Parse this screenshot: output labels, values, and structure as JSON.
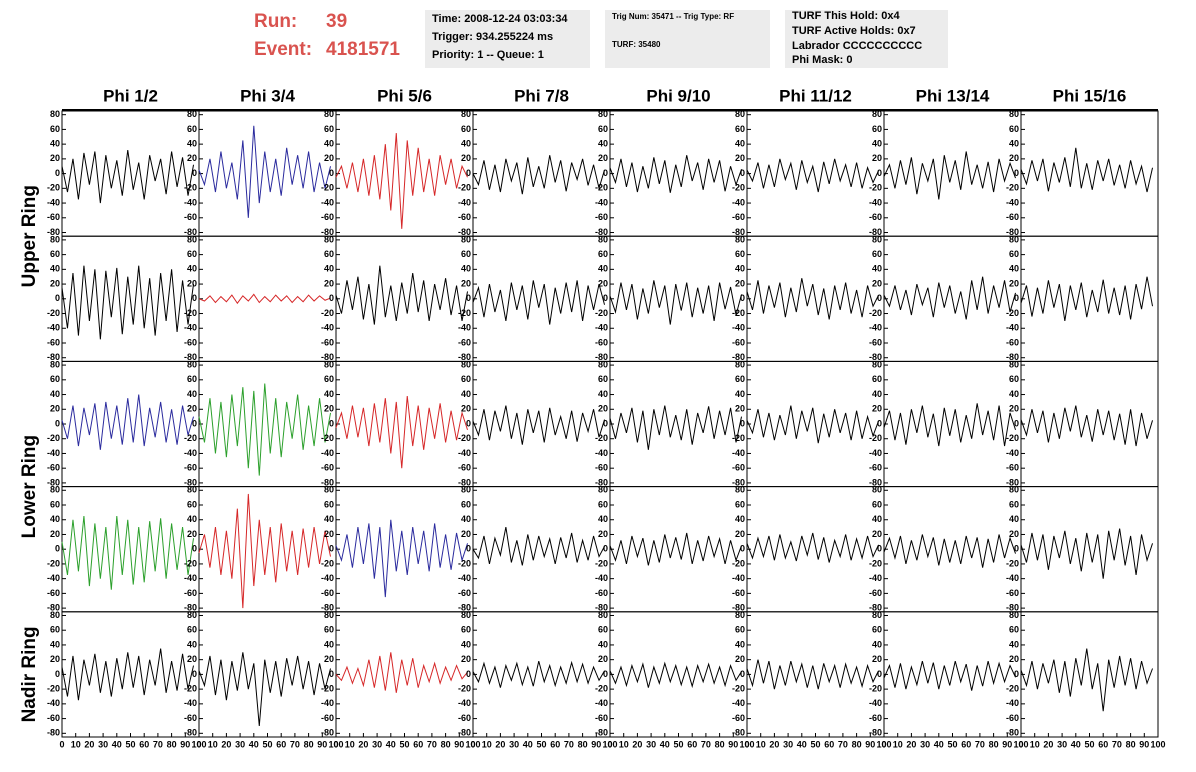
{
  "header": {
    "run_label": "Run:",
    "run": "39",
    "event_label": "Event:",
    "event": "4181571",
    "time": "Time: 2008-12-24 03:03:34",
    "trigger": "Trigger: 934.255224 ms",
    "priority": "Priority: 1 -- Queue: 1",
    "trig_num": "Trig Num: 35471 -- Trig Type: RF",
    "turf": "TURF: 35480",
    "turf_hold": "TURF This Hold: 0x4",
    "turf_active": "TURF Active Holds: 0x7",
    "labrador": "Labrador CCCCCCCCCC",
    "phi_mask": "Phi Mask: 0"
  },
  "column_labels": [
    "Phi 1/2",
    "Phi 3/4",
    "Phi 5/6",
    "Phi 7/8",
    "Phi 9/10",
    "Phi 11/12",
    "Phi 13/14",
    "Phi 15/16"
  ],
  "row_labels": [
    "Upper Ring",
    "Lower Ring",
    "Nadir Ring"
  ],
  "axes": {
    "x": [
      0,
      4,
      8,
      12,
      16,
      20,
      24,
      28,
      32,
      36,
      40,
      44,
      48,
      52,
      56,
      60,
      64,
      68,
      72,
      76,
      80,
      84,
      88,
      92,
      96
    ],
    "xlim": [
      0,
      100
    ],
    "xticks": [
      0,
      10,
      20,
      30,
      40,
      50,
      60,
      70,
      80,
      90,
      100
    ],
    "ylim": [
      -85,
      85
    ],
    "yticks": [
      -80,
      -60,
      -40,
      -20,
      0,
      20,
      40,
      60,
      80
    ]
  },
  "chart_data": [
    {
      "type": "line",
      "color": "#000000",
      "values": [
        10,
        -25,
        20,
        -35,
        28,
        -15,
        30,
        -40,
        25,
        -20,
        18,
        -30,
        32,
        -22,
        15,
        -35,
        25,
        -10,
        20,
        -28,
        30,
        -18,
        22,
        -30,
        12
      ]
    },
    {
      "type": "line",
      "color": "#2b2b9e",
      "values": [
        5,
        -15,
        20,
        -25,
        30,
        -20,
        15,
        -35,
        45,
        -60,
        65,
        -40,
        30,
        -25,
        20,
        -30,
        35,
        -15,
        25,
        -20,
        30,
        -25,
        15,
        -20,
        10
      ]
    },
    {
      "type": "line",
      "color": "#d62728",
      "values": [
        -5,
        10,
        -20,
        15,
        -25,
        20,
        -30,
        25,
        -35,
        40,
        -50,
        55,
        -75,
        45,
        -30,
        35,
        -25,
        20,
        -30,
        25,
        -15,
        20,
        -20,
        10,
        -5
      ]
    },
    {
      "type": "line",
      "color": "#000000",
      "values": [
        0,
        -15,
        18,
        -22,
        12,
        -25,
        20,
        -10,
        15,
        -28,
        22,
        -18,
        10,
        -20,
        25,
        -12,
        18,
        -24,
        15,
        -8,
        20,
        -16,
        12,
        -20,
        5
      ]
    },
    {
      "type": "line",
      "color": "#000000",
      "values": [
        8,
        -12,
        20,
        -18,
        15,
        -25,
        10,
        -20,
        22,
        -14,
        18,
        -26,
        12,
        -18,
        25,
        -10,
        15,
        -22,
        20,
        -12,
        18,
        -24,
        10,
        -15,
        6
      ]
    },
    {
      "type": "line",
      "color": "#000000",
      "values": [
        5,
        -10,
        15,
        -20,
        12,
        -18,
        20,
        -8,
        14,
        -22,
        18,
        -12,
        10,
        -25,
        16,
        -14,
        20,
        -10,
        12,
        -18,
        15,
        -20,
        8,
        -12,
        4
      ]
    },
    {
      "type": "line",
      "color": "#000000",
      "values": [
        -4,
        12,
        -20,
        18,
        -15,
        22,
        -28,
        14,
        -10,
        20,
        -35,
        25,
        -12,
        18,
        -22,
        30,
        -15,
        12,
        -20,
        16,
        -25,
        20,
        -10,
        14,
        -6
      ]
    },
    {
      "type": "line",
      "color": "#000000",
      "values": [
        6,
        -14,
        18,
        -10,
        20,
        -24,
        15,
        -12,
        22,
        -18,
        35,
        -20,
        14,
        -22,
        18,
        -10,
        20,
        -16,
        12,
        -20,
        18,
        -14,
        10,
        -25,
        8
      ]
    },
    {
      "type": "line",
      "color": "#000000",
      "values": [
        15,
        -40,
        35,
        -50,
        45,
        -30,
        40,
        -55,
        38,
        -25,
        42,
        -48,
        30,
        -35,
        45,
        -40,
        28,
        -50,
        35,
        -30,
        40,
        -45,
        25,
        -35,
        20
      ]
    },
    {
      "type": "line",
      "color": "#d62728",
      "values": [
        0,
        -3,
        4,
        -5,
        3,
        -4,
        5,
        -6,
        4,
        -3,
        6,
        -5,
        3,
        -4,
        5,
        -3,
        4,
        -5,
        3,
        -4,
        5,
        -3,
        4,
        -2,
        1
      ]
    },
    {
      "type": "line",
      "color": "#000000",
      "values": [
        5,
        -20,
        25,
        -15,
        30,
        -28,
        20,
        -35,
        45,
        -25,
        18,
        -30,
        22,
        -20,
        35,
        -18,
        25,
        -30,
        20,
        -15,
        28,
        -22,
        18,
        -30,
        10
      ]
    },
    {
      "type": "line",
      "color": "#000000",
      "values": [
        -5,
        15,
        -25,
        20,
        -18,
        12,
        -30,
        22,
        -15,
        18,
        -28,
        25,
        -12,
        20,
        -35,
        15,
        -20,
        22,
        -18,
        25,
        -30,
        18,
        -15,
        20,
        -8
      ]
    },
    {
      "type": "line",
      "color": "#000000",
      "values": [
        4,
        -18,
        22,
        -15,
        20,
        -28,
        14,
        -20,
        25,
        -12,
        18,
        -35,
        20,
        -16,
        22,
        -25,
        15,
        -20,
        18,
        -30,
        22,
        -14,
        16,
        -22,
        6
      ]
    },
    {
      "type": "line",
      "color": "#000000",
      "values": [
        10,
        -15,
        25,
        -20,
        18,
        -12,
        22,
        -25,
        15,
        -18,
        28,
        -10,
        20,
        -22,
        14,
        -28,
        18,
        -15,
        22,
        -20,
        12,
        -25,
        18,
        -10,
        5
      ]
    },
    {
      "type": "line",
      "color": "#000000",
      "values": [
        5,
        -10,
        18,
        -15,
        12,
        -22,
        20,
        -8,
        15,
        -25,
        22,
        -12,
        18,
        -20,
        10,
        -28,
        25,
        -15,
        30,
        -20,
        18,
        -12,
        25,
        -18,
        8
      ]
    },
    {
      "type": "line",
      "color": "#000000",
      "values": [
        -6,
        18,
        -24,
        15,
        -20,
        25,
        -12,
        20,
        -30,
        18,
        -15,
        22,
        -25,
        12,
        -18,
        26,
        -20,
        15,
        -22,
        18,
        -28,
        20,
        -14,
        30,
        -10
      ]
    },
    {
      "type": "line",
      "color": "#2b2b9e",
      "values": [
        5,
        -20,
        25,
        -30,
        22,
        -15,
        28,
        -35,
        30,
        -20,
        25,
        -28,
        35,
        -25,
        40,
        -30,
        22,
        -18,
        30,
        -25,
        20,
        -28,
        25,
        -15,
        10
      ]
    },
    {
      "type": "line",
      "color": "#2ca02c",
      "values": [
        10,
        -25,
        35,
        -40,
        30,
        -45,
        40,
        -30,
        50,
        -60,
        45,
        -70,
        55,
        -40,
        35,
        -45,
        30,
        -20,
        40,
        -35,
        25,
        -30,
        35,
        -25,
        15
      ]
    },
    {
      "type": "line",
      "color": "#d62728",
      "values": [
        -5,
        15,
        -20,
        25,
        -18,
        22,
        -30,
        28,
        -25,
        35,
        -40,
        30,
        -60,
        38,
        -30,
        25,
        -35,
        22,
        -20,
        28,
        -25,
        18,
        -22,
        15,
        -8
      ]
    },
    {
      "type": "line",
      "color": "#000000",
      "values": [
        4,
        -15,
        20,
        -22,
        18,
        -10,
        25,
        -20,
        15,
        -28,
        20,
        -12,
        18,
        -25,
        22,
        -15,
        10,
        -20,
        18,
        -24,
        15,
        -10,
        20,
        -18,
        6
      ]
    },
    {
      "type": "line",
      "color": "#000000",
      "values": [
        8,
        -20,
        15,
        -12,
        22,
        -25,
        18,
        -35,
        20,
        -15,
        25,
        -18,
        12,
        -22,
        20,
        -28,
        15,
        -12,
        24,
        -20,
        18,
        -15,
        22,
        -25,
        10
      ]
    },
    {
      "type": "line",
      "color": "#000000",
      "values": [
        5,
        -12,
        20,
        -18,
        15,
        -22,
        12,
        -15,
        25,
        -20,
        18,
        -10,
        22,
        -26,
        14,
        -18,
        20,
        -12,
        15,
        -22,
        18,
        -20,
        10,
        -16,
        4
      ]
    },
    {
      "type": "line",
      "color": "#000000",
      "values": [
        -5,
        18,
        -22,
        15,
        -28,
        20,
        -12,
        25,
        -18,
        14,
        -30,
        22,
        -16,
        20,
        -25,
        12,
        -20,
        28,
        -15,
        18,
        -22,
        25,
        -30,
        15,
        -8
      ]
    },
    {
      "type": "line",
      "color": "#000000",
      "values": [
        6,
        -15,
        20,
        -12,
        18,
        -25,
        15,
        -20,
        22,
        -10,
        25,
        -18,
        12,
        -24,
        20,
        -15,
        18,
        -22,
        14,
        -28,
        20,
        -30,
        15,
        -20,
        5
      ]
    },
    {
      "type": "line",
      "color": "#2ca02c",
      "values": [
        10,
        -35,
        40,
        -30,
        45,
        -50,
        35,
        -40,
        30,
        -55,
        45,
        -35,
        40,
        -48,
        30,
        -45,
        38,
        -30,
        42,
        -40,
        35,
        -28,
        30,
        -35,
        15
      ]
    },
    {
      "type": "line",
      "color": "#d62728",
      "values": [
        -5,
        20,
        -25,
        30,
        -35,
        25,
        -40,
        55,
        -80,
        75,
        -50,
        40,
        -35,
        30,
        -45,
        35,
        -30,
        25,
        -35,
        28,
        -25,
        30,
        -20,
        25,
        -10
      ]
    },
    {
      "type": "line",
      "color": "#2b2b9e",
      "values": [
        5,
        -15,
        20,
        -25,
        30,
        -20,
        35,
        -40,
        30,
        -65,
        40,
        -30,
        25,
        -35,
        30,
        -20,
        25,
        -30,
        35,
        -25,
        20,
        -28,
        22,
        -15,
        8
      ]
    },
    {
      "type": "line",
      "color": "#000000",
      "values": [
        0,
        -12,
        18,
        -20,
        15,
        -8,
        30,
        -18,
        12,
        -22,
        20,
        -15,
        18,
        -10,
        14,
        -20,
        16,
        -12,
        22,
        -18,
        12,
        -15,
        18,
        -10,
        4
      ]
    },
    {
      "type": "line",
      "color": "#000000",
      "values": [
        5,
        -15,
        12,
        -20,
        18,
        -10,
        15,
        -22,
        12,
        -18,
        20,
        -12,
        16,
        -14,
        22,
        -20,
        12,
        -16,
        18,
        -10,
        14,
        -20,
        12,
        -15,
        5
      ]
    },
    {
      "type": "line",
      "color": "#000000",
      "values": [
        8,
        -12,
        15,
        -10,
        18,
        -15,
        20,
        -12,
        10,
        -16,
        18,
        -8,
        22,
        -14,
        16,
        -18,
        12,
        -10,
        20,
        -15,
        14,
        -12,
        18,
        -10,
        6
      ]
    },
    {
      "type": "line",
      "color": "#000000",
      "values": [
        -4,
        15,
        -12,
        18,
        -20,
        12,
        -15,
        20,
        -10,
        16,
        -22,
        14,
        -18,
        12,
        -20,
        18,
        -12,
        16,
        -25,
        14,
        -18,
        20,
        -12,
        15,
        -6
      ]
    },
    {
      "type": "line",
      "color": "#000000",
      "values": [
        6,
        -18,
        22,
        -15,
        20,
        -28,
        18,
        -12,
        25,
        -20,
        15,
        -30,
        22,
        -18,
        20,
        -40,
        25,
        -15,
        28,
        -22,
        18,
        -35,
        20,
        -15,
        8
      ]
    },
    {
      "type": "line",
      "color": "#000000",
      "values": [
        10,
        -30,
        25,
        -35,
        20,
        -15,
        28,
        -25,
        18,
        -30,
        22,
        -20,
        30,
        -18,
        25,
        -28,
        20,
        -15,
        35,
        -25,
        18,
        -22,
        28,
        -20,
        12
      ]
    },
    {
      "type": "line",
      "color": "#000000",
      "values": [
        5,
        -15,
        25,
        -28,
        20,
        -35,
        18,
        -22,
        30,
        -20,
        15,
        -70,
        20,
        -25,
        18,
        -30,
        22,
        -15,
        25,
        -20,
        18,
        -28,
        15,
        -20,
        8
      ]
    },
    {
      "type": "line",
      "color": "#d62728",
      "values": [
        0,
        -8,
        10,
        -12,
        8,
        -15,
        20,
        -18,
        25,
        -22,
        30,
        -25,
        20,
        -15,
        22,
        -18,
        12,
        -10,
        15,
        -12,
        10,
        -8,
        12,
        -6,
        3
      ]
    },
    {
      "type": "line",
      "color": "#000000",
      "values": [
        4,
        -10,
        15,
        -12,
        10,
        -18,
        12,
        -8,
        15,
        -14,
        10,
        -16,
        18,
        -10,
        12,
        -15,
        10,
        -12,
        16,
        -10,
        14,
        -12,
        10,
        -8,
        5
      ]
    },
    {
      "type": "line",
      "color": "#000000",
      "values": [
        5,
        -12,
        10,
        -15,
        12,
        -10,
        14,
        -18,
        10,
        -12,
        15,
        -10,
        12,
        -14,
        10,
        -16,
        12,
        -10,
        14,
        -12,
        10,
        -15,
        12,
        -8,
        4
      ]
    },
    {
      "type": "line",
      "color": "#000000",
      "values": [
        8,
        -15,
        20,
        -12,
        18,
        -20,
        12,
        -15,
        18,
        -10,
        14,
        -18,
        12,
        -20,
        15,
        -10,
        12,
        -18,
        14,
        -12,
        10,
        -16,
        12,
        -10,
        5
      ]
    },
    {
      "type": "line",
      "color": "#000000",
      "values": [
        -5,
        12,
        -18,
        15,
        -20,
        10,
        -14,
        18,
        -12,
        16,
        -20,
        12,
        -15,
        18,
        -10,
        14,
        -22,
        12,
        -16,
        18,
        -12,
        15,
        -10,
        12,
        -4
      ]
    },
    {
      "type": "line",
      "color": "#000000",
      "values": [
        6,
        -15,
        18,
        -20,
        15,
        -12,
        20,
        -25,
        18,
        -30,
        22,
        -15,
        35,
        -20,
        15,
        -50,
        20,
        -18,
        25,
        -15,
        22,
        -20,
        18,
        -12,
        8
      ]
    }
  ]
}
